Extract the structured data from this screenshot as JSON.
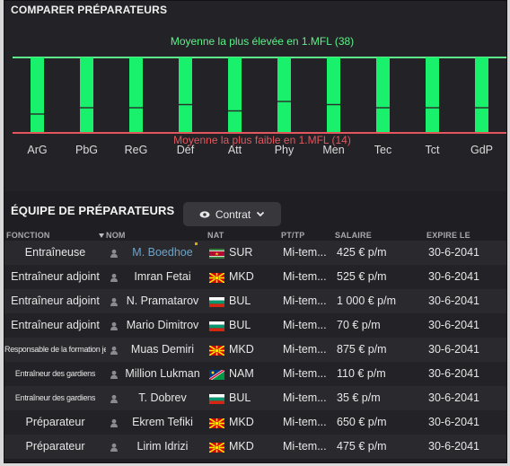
{
  "compare": {
    "title": "COMPARER PRÉPARATEURS",
    "high_label": "Moyenne la plus élevée en 1.MFL (38)",
    "low_label": "Moyenne la plus faible en 1.MFL (14)",
    "high_color": "#5df08a",
    "low_color": "#e2575e",
    "bar_color": "#19f06b",
    "max_value": 38,
    "min_value": 14,
    "categories": [
      "ArG",
      "PbG",
      "ReG",
      "Déf",
      "Att",
      "Phy",
      "Men",
      "Tec",
      "Tct",
      "GdP"
    ],
    "bar_values": [
      38,
      38,
      38,
      38,
      38,
      38,
      38,
      38,
      38,
      38
    ],
    "marker_values": [
      20,
      22,
      22,
      23,
      21,
      24,
      23,
      22,
      22,
      22
    ]
  },
  "team": {
    "title": "ÉQUIPE DE PRÉPARATEURS",
    "filter_label": "Contrat",
    "columns": {
      "fonction": "FONCTION",
      "nom": "NOM",
      "nat": "NAT",
      "tp": "PT/TP",
      "salaire": "SALAIRE",
      "expire": "EXPIRE LE"
    },
    "rows": [
      {
        "fonction": "Entraîneuse",
        "small": false,
        "nom": "M. Boedhoe",
        "highlight": true,
        "flag": "SUR",
        "nat": "SUR",
        "tp": "Mi-tem...",
        "salaire": "425 € p/m",
        "expire": "30-6-2041"
      },
      {
        "fonction": "Entraîneur adjoint",
        "small": false,
        "nom": "Imran Fetai",
        "highlight": false,
        "flag": "MKD",
        "nat": "MKD",
        "tp": "Mi-tem...",
        "salaire": "525 € p/m",
        "expire": "30-6-2041"
      },
      {
        "fonction": "Entraîneur adjoint",
        "small": false,
        "nom": "N. Pramatarov",
        "highlight": false,
        "flag": "BUL",
        "nat": "BUL",
        "tp": "Mi-tem...",
        "salaire": "1 000 € p/m",
        "expire": "30-6-2041"
      },
      {
        "fonction": "Entraîneur adjoint",
        "small": false,
        "nom": "Mario Dimitrov",
        "highlight": false,
        "flag": "BUL",
        "nat": "BUL",
        "tp": "Mi-tem...",
        "salaire": "70 € p/m",
        "expire": "30-6-2041"
      },
      {
        "fonction": "Responsable de la formation jeunes",
        "small": true,
        "nom": "Muas Demiri",
        "highlight": false,
        "flag": "MKD",
        "nat": "MKD",
        "tp": "Mi-tem...",
        "salaire": "875 € p/m",
        "expire": "30-6-2041"
      },
      {
        "fonction": "Entraîneur des gardiens",
        "small": true,
        "nom": "Million Lukman",
        "highlight": false,
        "flag": "NAM",
        "nat": "NAM",
        "tp": "Mi-tem...",
        "salaire": "110 € p/m",
        "expire": "30-6-2041"
      },
      {
        "fonction": "Entraîneur des gardiens",
        "small": true,
        "nom": "T. Dobrev",
        "highlight": false,
        "flag": "BUL",
        "nat": "BUL",
        "tp": "Mi-tem...",
        "salaire": "35 € p/m",
        "expire": "30-6-2041"
      },
      {
        "fonction": "Préparateur",
        "small": false,
        "nom": "Ekrem Tefiki",
        "highlight": false,
        "flag": "MKD",
        "nat": "MKD",
        "tp": "Mi-tem...",
        "salaire": "650 € p/m",
        "expire": "30-6-2041"
      },
      {
        "fonction": "Préparateur",
        "small": false,
        "nom": "Lirim Idrizi",
        "highlight": false,
        "flag": "MKD",
        "nat": "MKD",
        "tp": "Mi-tem...",
        "salaire": "475 € p/m",
        "expire": "30-6-2041"
      }
    ]
  }
}
